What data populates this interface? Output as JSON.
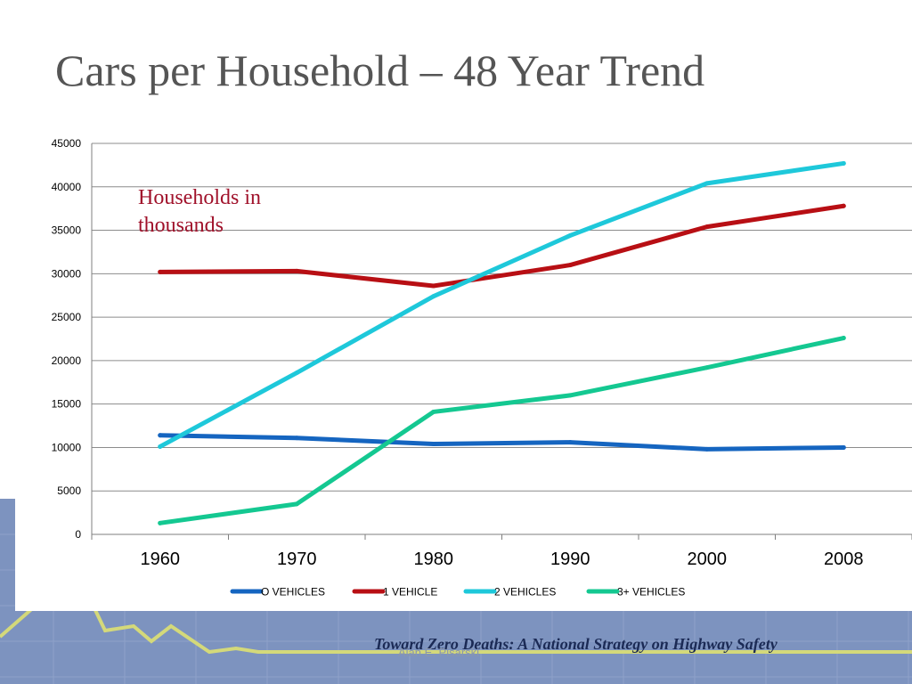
{
  "slide": {
    "title": "Cars per Household – 48 Year Trend",
    "annotation": "Households in thousands",
    "footer": "Toward Zero Deaths: A National Strategy on Highway Safety",
    "credit": "Alan E. Pisarski"
  },
  "chart_data": {
    "type": "line",
    "categories": [
      "1960",
      "1970",
      "1980",
      "1990",
      "2000",
      "2008"
    ],
    "series": [
      {
        "name": "O VEHICLES",
        "color": "#1565c0",
        "values": [
          11400,
          11100,
          10400,
          10600,
          9800,
          10000
        ]
      },
      {
        "name": "1 VEHICLE",
        "color": "#b80f14",
        "values": [
          30200,
          30300,
          28600,
          31000,
          35400,
          37800
        ]
      },
      {
        "name": "2 VEHICLES",
        "color": "#1ec8da",
        "values": [
          10100,
          18600,
          27400,
          34400,
          40400,
          42700
        ]
      },
      {
        "name": "3+ VEHICLES",
        "color": "#14c891",
        "values": [
          1300,
          3500,
          14100,
          16000,
          19200,
          22600
        ]
      }
    ],
    "ylim": [
      0,
      45000
    ],
    "yticks": [
      "0",
      "5000",
      "10000",
      "15000",
      "20000",
      "25000",
      "30000",
      "35000",
      "40000",
      "45000"
    ],
    "grid": true,
    "legend": "bottom"
  }
}
